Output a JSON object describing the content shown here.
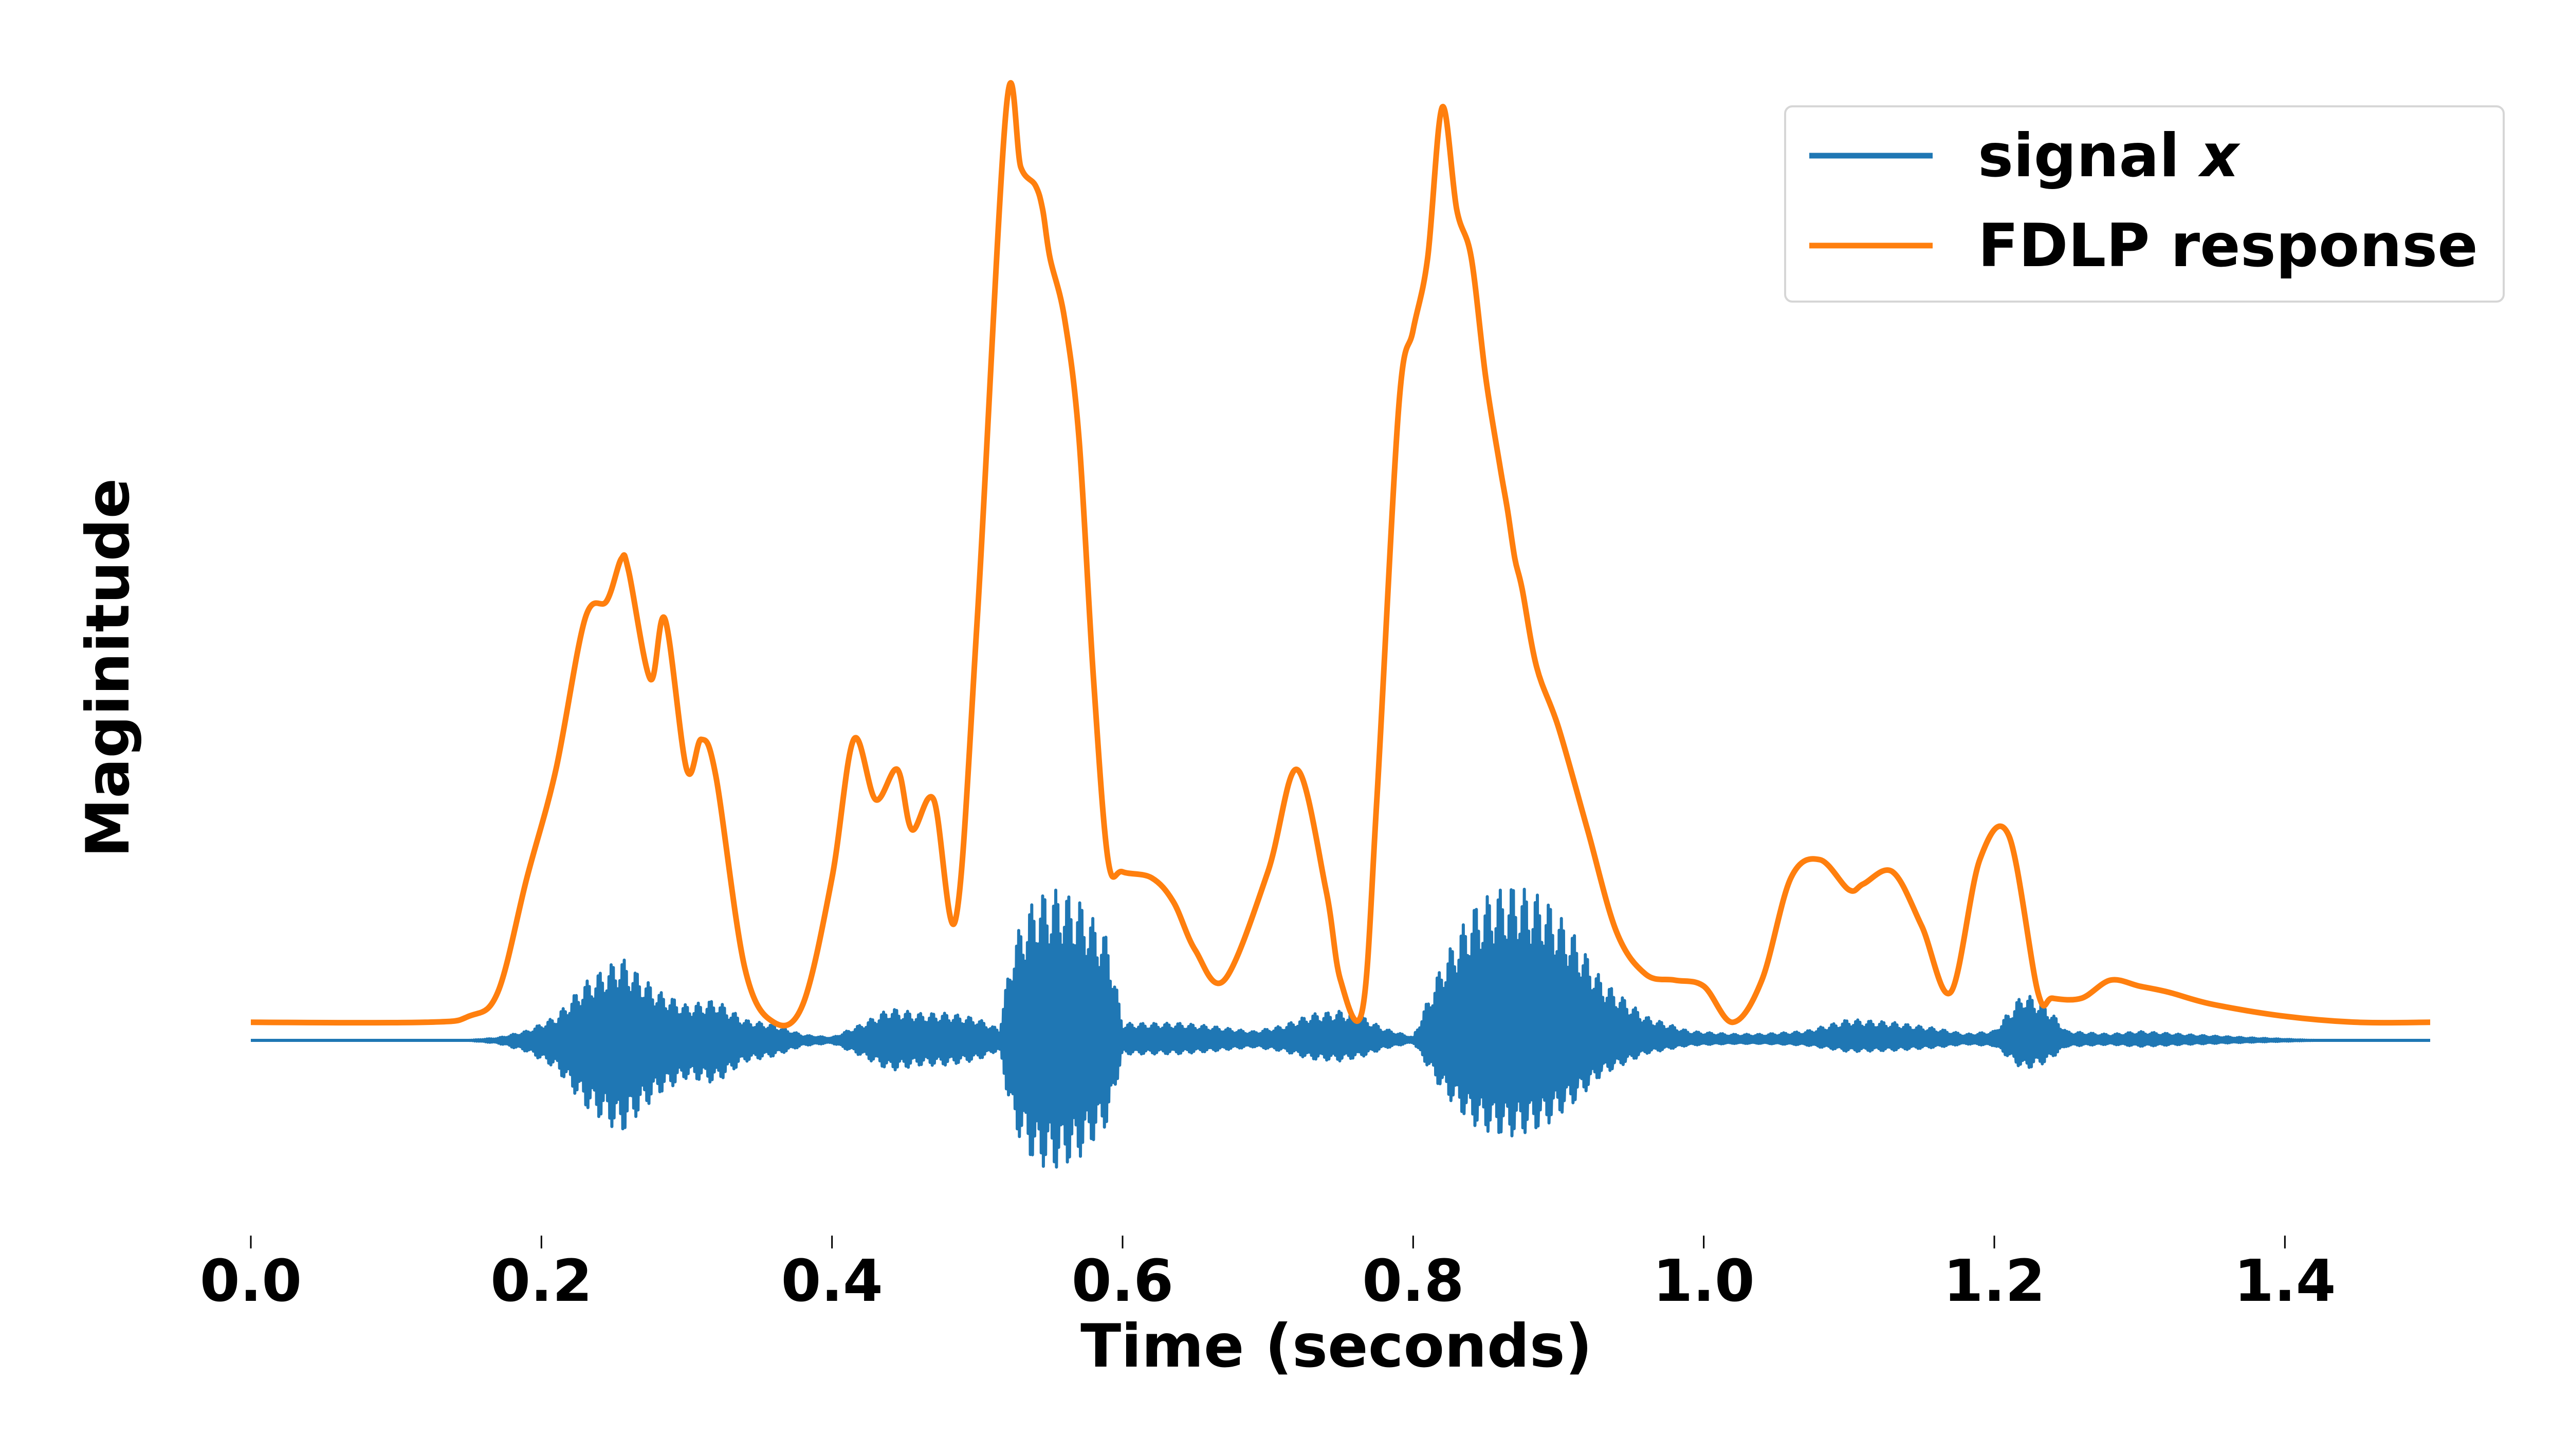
{
  "chart_data": {
    "type": "line",
    "xlabel": "Time (seconds)",
    "ylabel": "Maginitude",
    "xlim": [
      0.0,
      1.5
    ],
    "ylim": [
      -0.32,
      1.6
    ],
    "xticks": [
      "0.0",
      "0.2",
      "0.4",
      "0.6",
      "0.8",
      "1.0",
      "1.2",
      "1.4"
    ],
    "yticks_shown": false,
    "grid": false,
    "legend_position": "top-right",
    "legend": [
      {
        "name": "signal",
        "italic_suffix": "x",
        "color": "#1f77b4"
      },
      {
        "name": "FDLP response",
        "color": "#ff7f0e"
      }
    ],
    "series": [
      {
        "name": "FDLP response",
        "color": "#ff7f0e",
        "x": [
          0.0,
          0.12,
          0.15,
          0.17,
          0.19,
          0.21,
          0.23,
          0.245,
          0.255,
          0.26,
          0.275,
          0.285,
          0.3,
          0.31,
          0.32,
          0.34,
          0.36,
          0.38,
          0.4,
          0.415,
          0.43,
          0.445,
          0.455,
          0.47,
          0.485,
          0.5,
          0.52,
          0.53,
          0.54,
          0.545,
          0.55,
          0.56,
          0.57,
          0.58,
          0.59,
          0.6,
          0.62,
          0.635,
          0.65,
          0.67,
          0.7,
          0.72,
          0.74,
          0.75,
          0.765,
          0.775,
          0.79,
          0.8,
          0.81,
          0.82,
          0.83,
          0.84,
          0.85,
          0.86,
          0.865,
          0.87,
          0.875,
          0.885,
          0.9,
          0.92,
          0.94,
          0.96,
          0.98,
          1.0,
          1.02,
          1.04,
          1.06,
          1.08,
          1.1,
          1.11,
          1.13,
          1.15,
          1.17,
          1.19,
          1.21,
          1.23,
          1.24,
          1.26,
          1.28,
          1.3,
          1.32,
          1.35,
          1.4,
          1.45,
          1.5
        ],
        "y": [
          0.03,
          0.03,
          0.04,
          0.08,
          0.27,
          0.45,
          0.7,
          0.73,
          0.8,
          0.78,
          0.6,
          0.7,
          0.45,
          0.5,
          0.44,
          0.12,
          0.03,
          0.06,
          0.27,
          0.5,
          0.4,
          0.45,
          0.35,
          0.4,
          0.2,
          0.7,
          1.55,
          1.45,
          1.42,
          1.38,
          1.3,
          1.2,
          1.0,
          0.6,
          0.3,
          0.28,
          0.27,
          0.23,
          0.15,
          0.1,
          0.28,
          0.45,
          0.25,
          0.1,
          0.05,
          0.4,
          1.05,
          1.18,
          1.3,
          1.55,
          1.38,
          1.3,
          1.1,
          0.95,
          0.88,
          0.8,
          0.75,
          0.62,
          0.52,
          0.35,
          0.18,
          0.11,
          0.1,
          0.09,
          0.03,
          0.1,
          0.27,
          0.3,
          0.25,
          0.26,
          0.28,
          0.19,
          0.08,
          0.3,
          0.34,
          0.08,
          0.07,
          0.07,
          0.1,
          0.09,
          0.08,
          0.06,
          0.04,
          0.03,
          0.03
        ]
      },
      {
        "name": "signal x",
        "color": "#1f77b4",
        "x": [
          0.0,
          0.15,
          0.17,
          0.19,
          0.21,
          0.23,
          0.245,
          0.255,
          0.265,
          0.28,
          0.3,
          0.32,
          0.34,
          0.36,
          0.38,
          0.4,
          0.42,
          0.44,
          0.46,
          0.48,
          0.5,
          0.515,
          0.525,
          0.54,
          0.555,
          0.57,
          0.59,
          0.6,
          0.62,
          0.64,
          0.66,
          0.69,
          0.71,
          0.73,
          0.75,
          0.765,
          0.78,
          0.8,
          0.82,
          0.84,
          0.855,
          0.87,
          0.89,
          0.91,
          0.93,
          0.96,
          0.99,
          1.02,
          1.04,
          1.07,
          1.1,
          1.13,
          1.16,
          1.18,
          1.2,
          1.22,
          1.235,
          1.25,
          1.28,
          1.3,
          1.33,
          1.37,
          1.42,
          1.46,
          1.5
        ],
        "amplitude": [
          0.0,
          0.0,
          0.005,
          0.02,
          0.05,
          0.12,
          0.15,
          0.17,
          0.14,
          0.1,
          0.07,
          0.08,
          0.04,
          0.03,
          0.01,
          0.005,
          0.03,
          0.06,
          0.05,
          0.05,
          0.04,
          0.02,
          0.18,
          0.26,
          0.27,
          0.25,
          0.18,
          0.03,
          0.03,
          0.03,
          0.025,
          0.015,
          0.025,
          0.045,
          0.05,
          0.04,
          0.02,
          0.005,
          0.13,
          0.22,
          0.25,
          0.26,
          0.24,
          0.18,
          0.1,
          0.04,
          0.015,
          0.01,
          0.01,
          0.015,
          0.035,
          0.03,
          0.02,
          0.01,
          0.015,
          0.08,
          0.06,
          0.015,
          0.01,
          0.015,
          0.01,
          0.005,
          0.0,
          0.0,
          0.0
        ]
      }
    ]
  }
}
